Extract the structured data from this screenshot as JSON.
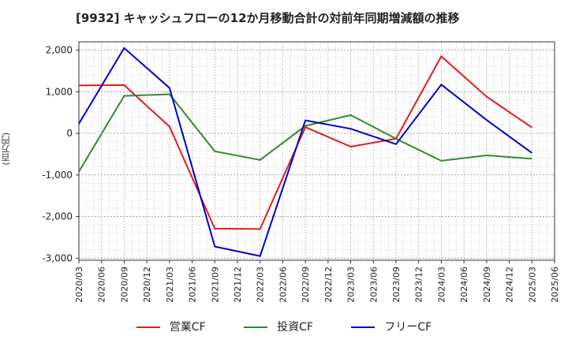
{
  "chart_title": "[9932]  キャッシュフローの12か月移動合計の対前年同期増減額の推移",
  "chart_data": {
    "type": "line",
    "title": "[9932]  キャッシュフローの12か月移動合計の対前年同期増減額の推移",
    "ylabel": "(百万円)",
    "xlabel": "",
    "ylim": [
      -3050,
      2200
    ],
    "yticks": [
      2000,
      1000,
      0,
      -1000,
      -2000,
      -3000
    ],
    "ytick_labels": [
      "2,000",
      "1,000",
      "0",
      "-1,000",
      "-2,000",
      "-3,000"
    ],
    "x_ticks": [
      "2020/03",
      "2020/06",
      "2020/09",
      "2020/12",
      "2021/03",
      "2021/06",
      "2021/09",
      "2021/12",
      "2022/03",
      "2022/06",
      "2022/09",
      "2022/12",
      "2023/03",
      "2023/06",
      "2023/09",
      "2023/12",
      "2024/03",
      "2024/06",
      "2024/09",
      "2024/12",
      "2025/03",
      "2025/06"
    ],
    "grid": true,
    "legend_position": "bottom",
    "series": [
      {
        "name": "営業CF",
        "color": "#e41a1c",
        "x": [
          "2020/03",
          "2020/09",
          "2021/03",
          "2021/09",
          "2022/03",
          "2022/09",
          "2023/03",
          "2023/09",
          "2024/03",
          "2024/09",
          "2025/03"
        ],
        "values": [
          1150,
          1160,
          160,
          -2290,
          -2300,
          150,
          -320,
          -130,
          1850,
          880,
          140
        ]
      },
      {
        "name": "投資CF",
        "color": "#2e8b2e",
        "x": [
          "2020/03",
          "2020/09",
          "2021/03",
          "2021/09",
          "2022/03",
          "2022/09",
          "2023/03",
          "2023/09",
          "2024/03",
          "2024/09",
          "2025/03"
        ],
        "values": [
          -920,
          900,
          940,
          -430,
          -640,
          180,
          440,
          -130,
          -660,
          -530,
          -610
        ]
      },
      {
        "name": "フリーCF",
        "color": "#0000cc",
        "x": [
          "2020/03",
          "2020/09",
          "2021/03",
          "2021/09",
          "2022/03",
          "2022/09",
          "2023/03",
          "2023/09",
          "2024/03",
          "2024/09",
          "2025/03"
        ],
        "values": [
          230,
          2050,
          1090,
          -2720,
          -2950,
          310,
          110,
          -260,
          1170,
          320,
          -470
        ]
      }
    ]
  }
}
